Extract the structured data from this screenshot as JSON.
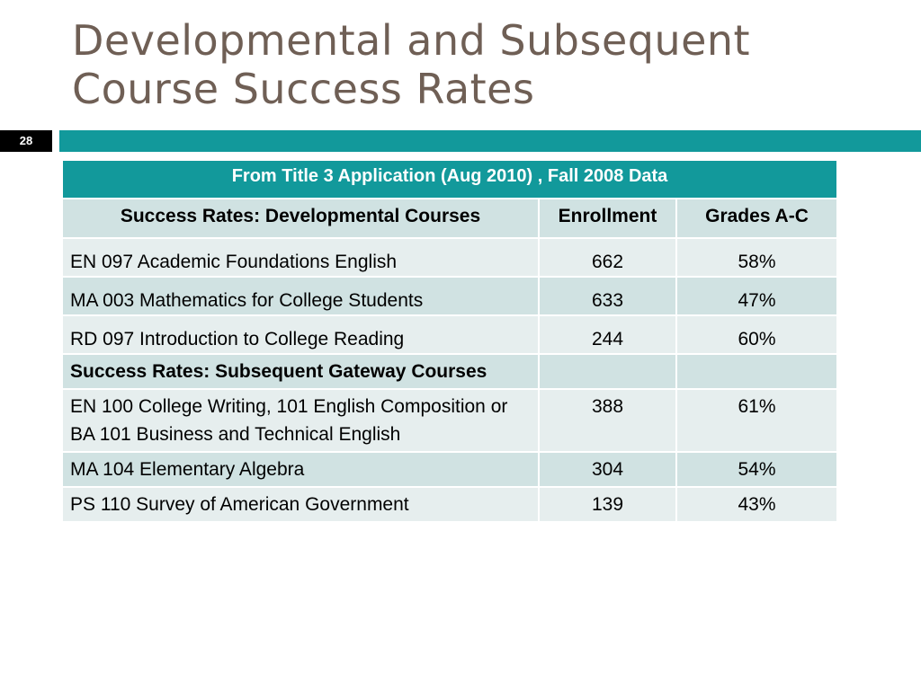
{
  "slide": {
    "title_line1": "Developmental and Subsequent",
    "title_line2": "Course Success Rates",
    "number": "28"
  },
  "table": {
    "caption": "From Title 3 Application (Aug 2010) , Fall 2008 Data",
    "headers": [
      "Success Rates: Developmental Courses",
      "Enrollment",
      "Grades A-C"
    ],
    "developmental_rows": [
      {
        "course": "EN 097 Academic Foundations English",
        "enrollment": "662",
        "grades": "58%"
      },
      {
        "course": "MA 003 Mathematics for College Students",
        "enrollment": "633",
        "grades": "47%"
      },
      {
        "course": "RD 097 Introduction to College Reading",
        "enrollment": "244",
        "grades": "60%"
      }
    ],
    "section_label": "Success Rates: Subsequent Gateway Courses",
    "gateway_rows": [
      {
        "course": "EN 100 College Writing, 101 English Composition or BA 101 Business and Technical English",
        "enrollment": "388",
        "grades": "61%"
      },
      {
        "course": "MA 104 Elementary Algebra",
        "enrollment": "304",
        "grades": "54%"
      },
      {
        "course": "PS 110 Survey of American Government",
        "enrollment": "139",
        "grades": "43%"
      }
    ]
  }
}
